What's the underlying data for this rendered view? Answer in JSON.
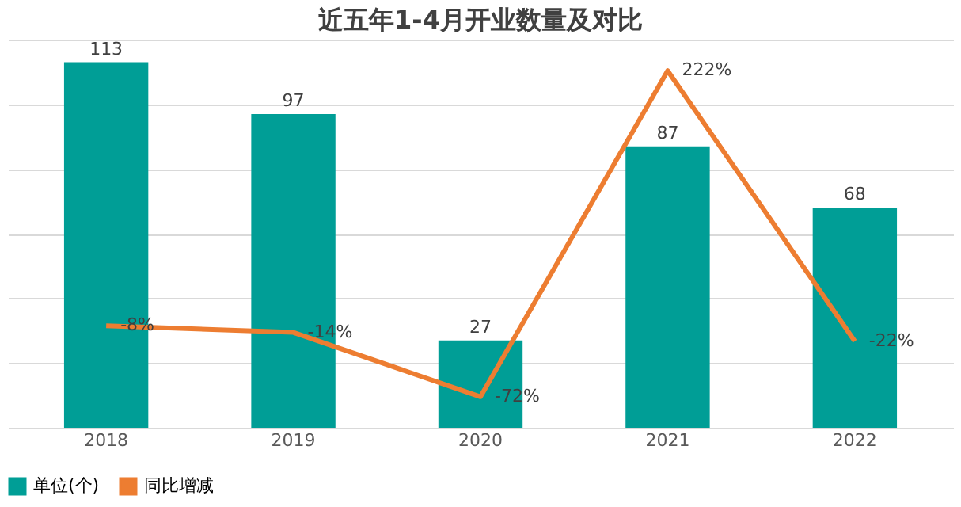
{
  "chart_data": {
    "type": "bar",
    "title": "近五年1-4月开业数量及对比",
    "categories": [
      "2018",
      "2019",
      "2020",
      "2021",
      "2022"
    ],
    "series": [
      {
        "name": "单位(个)",
        "color": "#009e96",
        "values": [
          113,
          97,
          27,
          87,
          68
        ]
      },
      {
        "name": "同比增减",
        "type": "line",
        "axis": "y2",
        "color": "#ed7d31",
        "values": [
          -8,
          -14,
          -72,
          222,
          -22
        ],
        "value_labels": [
          "-8%",
          "-14%",
          "-72%",
          "222%",
          "-22%"
        ]
      }
    ],
    "ylim": [
      0,
      120
    ],
    "yticks": [
      {
        "value": 0,
        "label": null
      },
      {
        "value": 20,
        "label": null
      },
      {
        "value": 40,
        "label": null
      },
      {
        "value": 60,
        "label": null
      },
      {
        "value": 80,
        "label": null
      },
      {
        "value": 100,
        "label": null
      },
      {
        "value": 120,
        "label": null
      }
    ],
    "y2lim": [
      -100,
      250
    ],
    "tick_labels": "x",
    "grid": "y",
    "data_labels": true,
    "legend": "bottom",
    "marker": "none",
    "line_style": "solid"
  }
}
